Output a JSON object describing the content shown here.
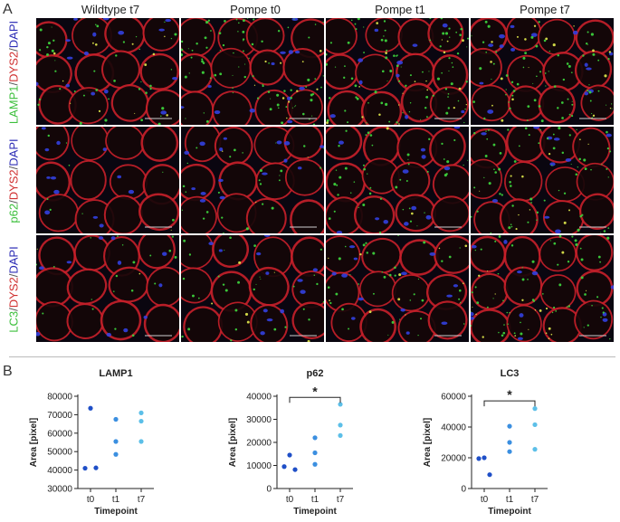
{
  "panel_a_letter": "A",
  "panel_b_letter": "B",
  "columns": [
    "Wildtype t7",
    "Pompe t0",
    "Pompe t1",
    "Pompe t7"
  ],
  "rows": [
    {
      "marker": "LAMP1",
      "sep1": "/",
      "dys": "DYS2",
      "sep2": "/",
      "dapi": "DAPI"
    },
    {
      "marker": "p62",
      "sep1": "/",
      "dys": "DYS2",
      "sep2": "/",
      "dapi": "DAPI"
    },
    {
      "marker": "LC3",
      "sep1": "/",
      "dys": "DYS2",
      "sep2": "/",
      "dapi": "DAPI"
    }
  ],
  "colors": {
    "membrane": "#c8202a",
    "marker": "#3cd03c",
    "nuclei": "#3340e0",
    "dot_t0": "#1f4fc7",
    "dot_t1": "#3b8fe0",
    "dot_t7": "#5cbfe8"
  },
  "chart_data": [
    {
      "type": "scatter",
      "title": "LAMP1",
      "xlabel": "Timepoint",
      "ylabel": "Area [pixel]",
      "categories": [
        "t0",
        "t1",
        "t7"
      ],
      "ylim": [
        30000,
        80000
      ],
      "yticks": [
        30000,
        40000,
        50000,
        60000,
        70000,
        80000
      ],
      "ytick_labels": [
        "30000",
        "40000",
        "50000",
        "60000",
        "70000",
        "80000"
      ],
      "points": [
        {
          "x": "t0",
          "y": 73500
        },
        {
          "x": "t0",
          "y": 41000
        },
        {
          "x": "t0",
          "y": 41200
        },
        {
          "x": "t1",
          "y": 67500
        },
        {
          "x": "t1",
          "y": 55500
        },
        {
          "x": "t1",
          "y": 48500
        },
        {
          "x": "t7",
          "y": 71000
        },
        {
          "x": "t7",
          "y": 66500
        },
        {
          "x": "t7",
          "y": 55500
        }
      ],
      "significance": null
    },
    {
      "type": "scatter",
      "title": "p62",
      "xlabel": "Timepoint",
      "ylabel": "Area [pixel]",
      "categories": [
        "t0",
        "t1",
        "t7"
      ],
      "ylim": [
        0,
        40000
      ],
      "yticks": [
        0,
        10000,
        20000,
        30000,
        40000
      ],
      "ytick_labels": [
        "0",
        "10000",
        "20000",
        "30000",
        "40000"
      ],
      "points": [
        {
          "x": "t0",
          "y": 14500
        },
        {
          "x": "t0",
          "y": 9500
        },
        {
          "x": "t0",
          "y": 8200
        },
        {
          "x": "t1",
          "y": 22000
        },
        {
          "x": "t1",
          "y": 15500
        },
        {
          "x": "t1",
          "y": 10500
        },
        {
          "x": "t7",
          "y": 36500
        },
        {
          "x": "t7",
          "y": 27500
        },
        {
          "x": "t7",
          "y": 23000
        }
      ],
      "significance": {
        "from": "t0",
        "to": "t7",
        "label": "*",
        "y": 39500
      }
    },
    {
      "type": "scatter",
      "title": "LC3",
      "xlabel": "Timepoint",
      "ylabel": "Area [pixel]",
      "categories": [
        "t0",
        "t1",
        "t7"
      ],
      "ylim": [
        0,
        60000
      ],
      "yticks": [
        0,
        20000,
        40000,
        60000
      ],
      "ytick_labels": [
        "0",
        "20000",
        "40000",
        "60000"
      ],
      "points": [
        {
          "x": "t0",
          "y": 20000
        },
        {
          "x": "t0",
          "y": 19500
        },
        {
          "x": "t0",
          "y": 9000
        },
        {
          "x": "t1",
          "y": 40500
        },
        {
          "x": "t1",
          "y": 30000
        },
        {
          "x": "t1",
          "y": 24000
        },
        {
          "x": "t7",
          "y": 52000
        },
        {
          "x": "t7",
          "y": 41500
        },
        {
          "x": "t7",
          "y": 25500
        }
      ],
      "significance": {
        "from": "t0",
        "to": "t7",
        "label": "*",
        "y": 57000
      }
    }
  ]
}
